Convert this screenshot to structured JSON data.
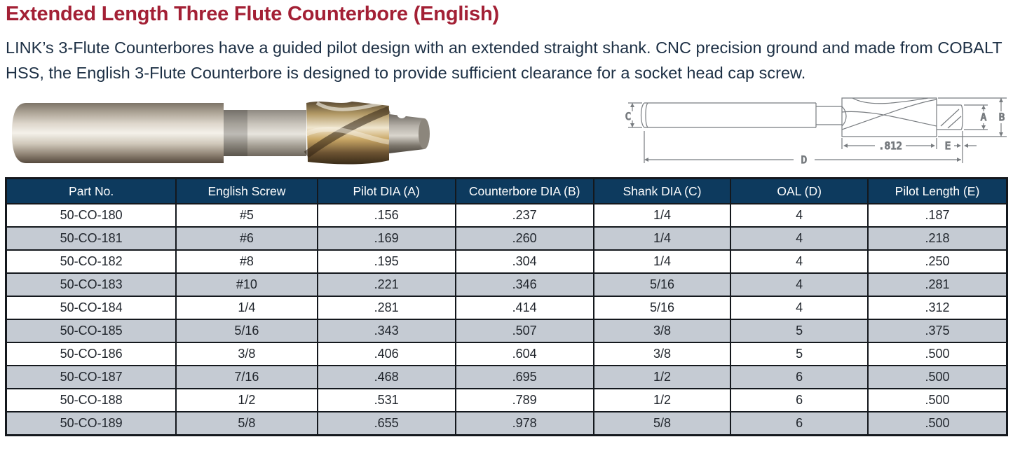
{
  "header": {
    "title": "Extended Length Three Flute Counterbore (English)",
    "description": "LINK’s 3-Flute Counterbores have a guided pilot design with an extended straight shank. CNC precision ground and made from COBALT HSS, the English 3-Flute Counterbore is designed to provide sufficient clearance for a socket head cap screw."
  },
  "colors": {
    "title_red": "#a32035",
    "body_navy": "#1c2f44",
    "table_header_bg": "#0d3a5e",
    "table_header_text": "#ffffff",
    "row_alt_gray": "#c5cbd3",
    "table_border": "#14181d"
  },
  "diagram": {
    "dim_a": "A",
    "dim_b": "B",
    "dim_c": "C",
    "dim_d": "D",
    "dim_e": "E",
    "cutter_length": ".812"
  },
  "table": {
    "columns": [
      "Part No.",
      "English Screw",
      "Pilot DIA (A)",
      "Counterbore DIA (B)",
      "Shank DIA (C)",
      "OAL (D)",
      "Pilot Length (E)"
    ],
    "rows": [
      [
        "50-CO-180",
        "#5",
        ".156",
        ".237",
        "1/4",
        "4",
        ".187"
      ],
      [
        "50-CO-181",
        "#6",
        ".169",
        ".260",
        "1/4",
        "4",
        ".218"
      ],
      [
        "50-CO-182",
        "#8",
        ".195",
        ".304",
        "1/4",
        "4",
        ".250"
      ],
      [
        "50-CO-183",
        "#10",
        ".221",
        ".346",
        "5/16",
        "4",
        ".281"
      ],
      [
        "50-CO-184",
        "1/4",
        ".281",
        ".414",
        "5/16",
        "4",
        ".312"
      ],
      [
        "50-CO-185",
        "5/16",
        ".343",
        ".507",
        "3/8",
        "5",
        ".375"
      ],
      [
        "50-CO-186",
        "3/8",
        ".406",
        ".604",
        "3/8",
        "5",
        ".500"
      ],
      [
        "50-CO-187",
        "7/16",
        ".468",
        ".695",
        "1/2",
        "6",
        ".500"
      ],
      [
        "50-CO-188",
        "1/2",
        ".531",
        ".789",
        "1/2",
        "6",
        ".500"
      ],
      [
        "50-CO-189",
        "5/8",
        ".655",
        ".978",
        "5/8",
        "6",
        ".500"
      ]
    ]
  }
}
